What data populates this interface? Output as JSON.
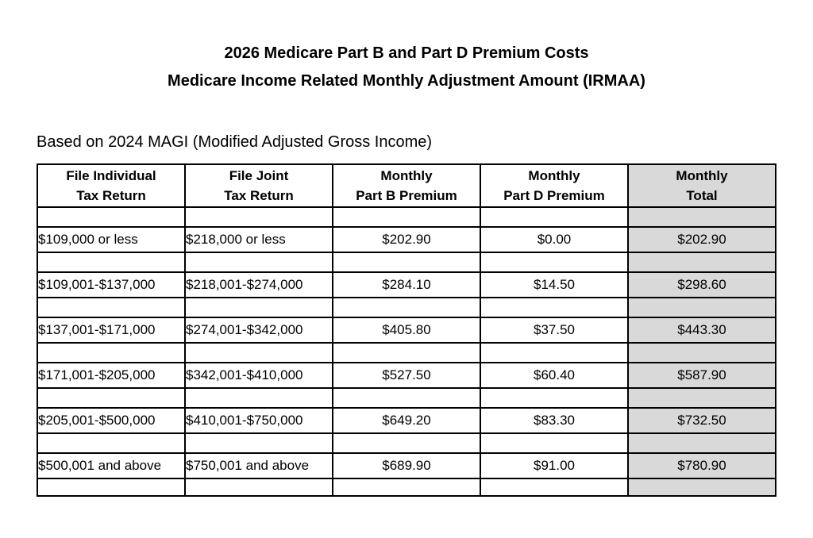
{
  "page": {
    "title_line1": "2026 Medicare Part B and Part D Premium Costs",
    "title_line2": "Medicare Income Related Monthly Adjustment Amount (IRMAA)",
    "subtitle": "Based on 2024 MAGI (Modified Adjusted Gross Income)"
  },
  "colors": {
    "page_background": "#ffffff",
    "table_border": "#000000",
    "total_column_bg": "#d9d9d9",
    "text": "#000000"
  },
  "table": {
    "headers": [
      {
        "line1": "File Individual",
        "line2": "Tax Return"
      },
      {
        "line1": "File Joint",
        "line2": "Tax Return"
      },
      {
        "line1": "Monthly",
        "line2": "Part B Premium"
      },
      {
        "line1": "Monthly",
        "line2": "Part D Premium"
      },
      {
        "line1": "Monthly",
        "line2": "Total"
      }
    ],
    "rows": [
      [
        "$109,000 or less",
        "$218,000 or less",
        "$202.90",
        "$0.00",
        "$202.90"
      ],
      [
        "$109,001-$137,000",
        "$218,001-$274,000",
        "$284.10",
        "$14.50",
        "$298.60"
      ],
      [
        "$137,001-$171,000",
        "$274,001-$342,000",
        "$405.80",
        "$37.50",
        "$443.30"
      ],
      [
        "$171,001-$205,000",
        "$342,001-$410,000",
        "$527.50",
        "$60.40",
        "$587.90"
      ],
      [
        "$205,001-$500,000",
        "$410,001-$750,000",
        "$649.20",
        "$83.30",
        "$732.50"
      ],
      [
        "$500,001 and above",
        "$750,001 and above",
        "$689.90",
        "$91.00",
        "$780.90"
      ]
    ]
  }
}
